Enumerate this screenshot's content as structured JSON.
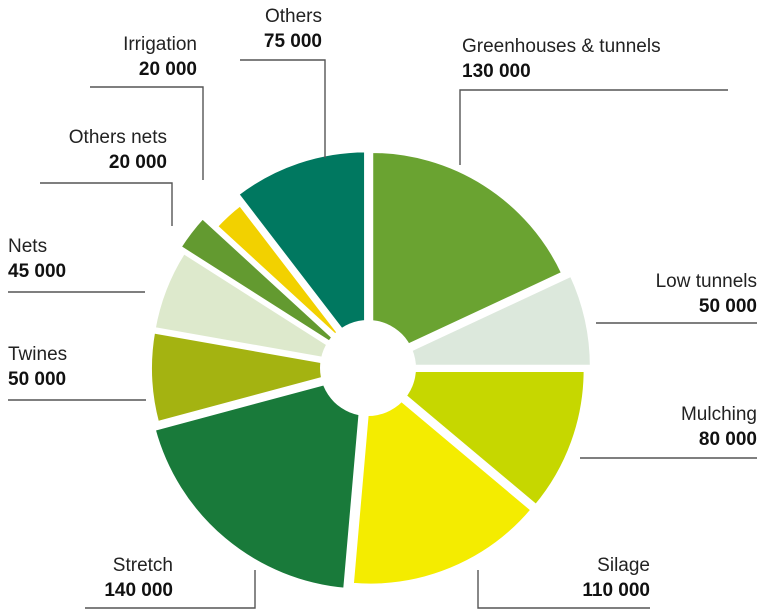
{
  "colors": {
    "background": "#ffffff",
    "separator": "#ffffff",
    "hole": "#ffffff",
    "leader": "#555555"
  },
  "chart_data": {
    "type": "pie",
    "donut": true,
    "legend": "none",
    "slices": [
      {
        "name": "Greenhouses & tunnels",
        "value": 130000,
        "value_label": "130 000",
        "color": "#6aa331"
      },
      {
        "name": "Low tunnels",
        "value": 50000,
        "value_label": "50 000",
        "color": "#dce8dc"
      },
      {
        "name": "Mulching",
        "value": 80000,
        "value_label": "80 000",
        "color": "#c6d700"
      },
      {
        "name": "Silage",
        "value": 110000,
        "value_label": "110 000",
        "color": "#f4ec00"
      },
      {
        "name": "Stretch",
        "value": 140000,
        "value_label": "140 000",
        "color": "#197a3a"
      },
      {
        "name": "Twines",
        "value": 50000,
        "value_label": "50 000",
        "color": "#a4b311"
      },
      {
        "name": "Nets",
        "value": 45000,
        "value_label": "45 000",
        "color": "#dde9cc"
      },
      {
        "name": "Others nets",
        "value": 20000,
        "value_label": "20 000",
        "color": "#639a30"
      },
      {
        "name": "Irrigation",
        "value": 20000,
        "value_label": "20 000",
        "color": "#f2d100",
        "exploded": true
      },
      {
        "name": "Others",
        "value": 75000,
        "value_label": "75 000",
        "color": "#007860"
      }
    ]
  }
}
